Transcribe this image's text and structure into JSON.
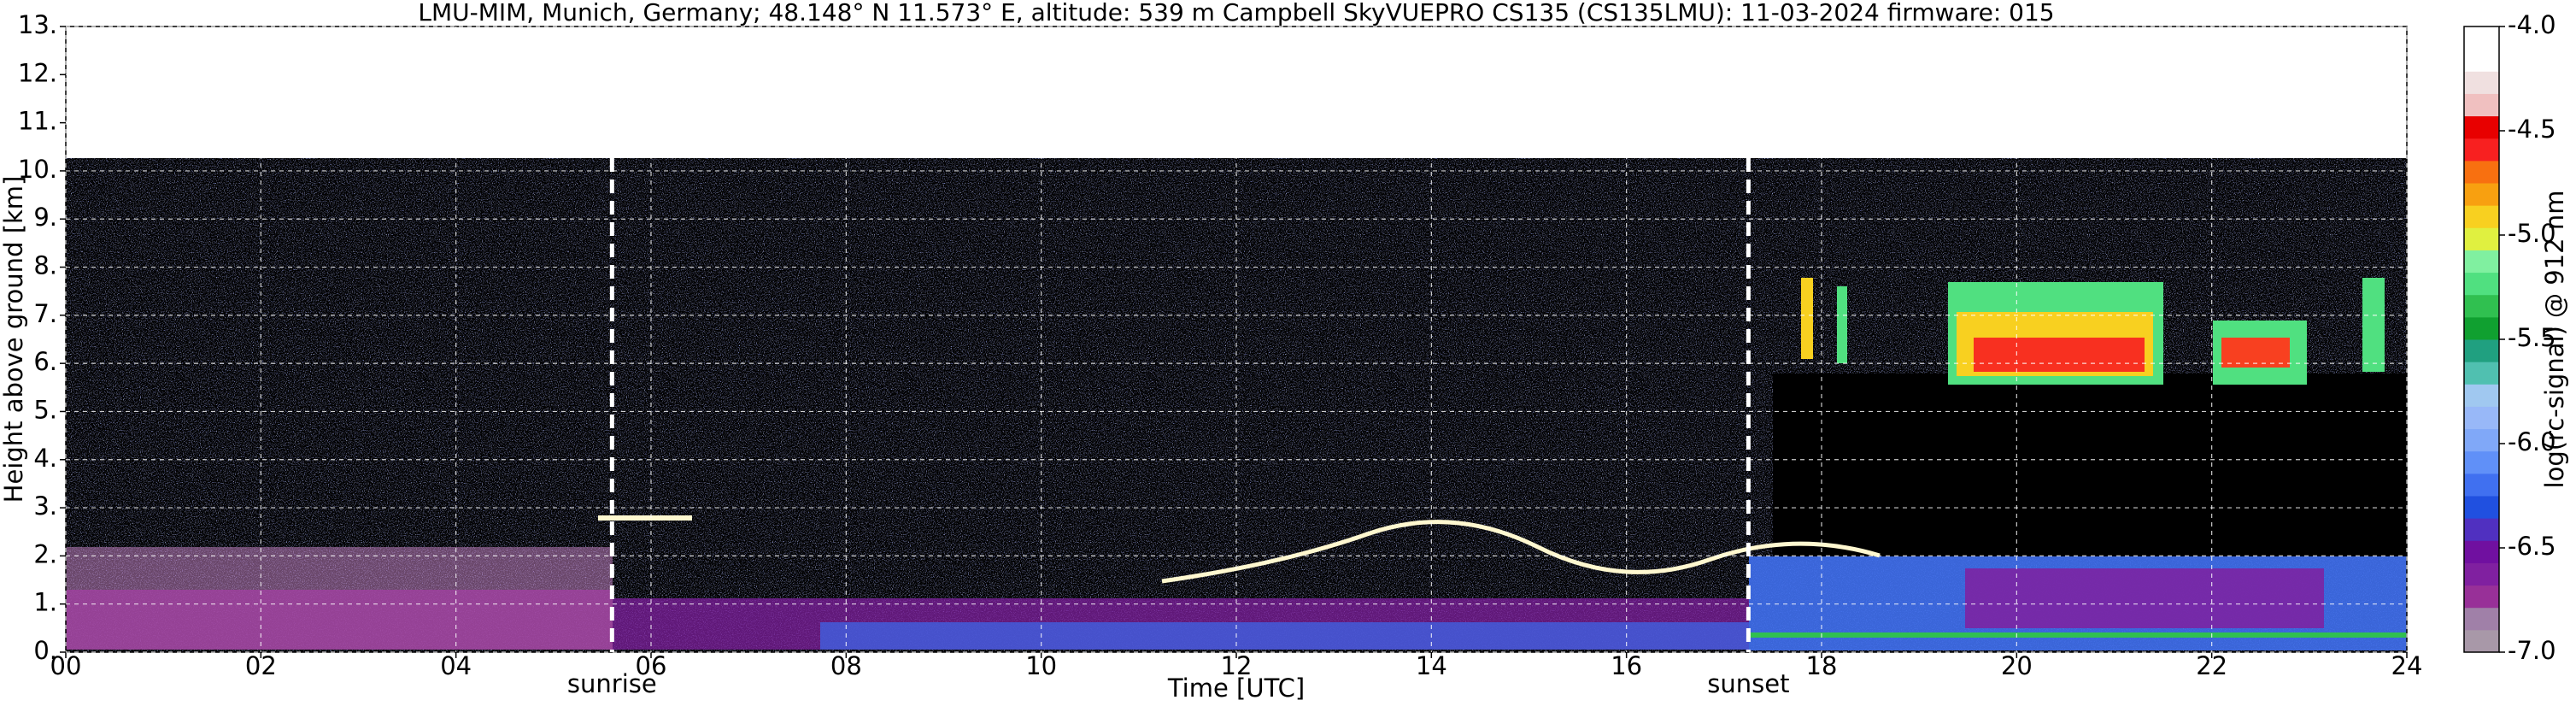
{
  "chart_data": {
    "type": "heatmap",
    "title": "LMU-MIM, Munich, Germany; 48.148° N 11.573° E, altitude: 539 m    Campbell SkyVUEPRO CS135 (CS135LMU): 11-03-2024    firmware: 015",
    "xlabel": "Time [UTC]",
    "ylabel": "Height above ground [km]",
    "xlim": [
      0,
      24
    ],
    "xticks": [
      {
        "value": 0,
        "label": "00"
      },
      {
        "value": 2,
        "label": "02"
      },
      {
        "value": 4,
        "label": "04"
      },
      {
        "value": 6,
        "label": "06"
      },
      {
        "value": 8,
        "label": "08"
      },
      10,
      12,
      14,
      16,
      18,
      20,
      22,
      24
    ],
    "ylim": [
      0,
      13
    ],
    "yticks": [
      {
        "value": 0,
        "label": "0."
      },
      {
        "value": 1,
        "label": "1."
      },
      {
        "value": 2,
        "label": "2."
      },
      {
        "value": 3,
        "label": "3."
      },
      {
        "value": 4,
        "label": "4."
      },
      {
        "value": 5,
        "label": "5."
      },
      {
        "value": 6,
        "label": "6."
      },
      {
        "value": 7,
        "label": "7."
      },
      {
        "value": 8,
        "label": "8."
      },
      {
        "value": 9,
        "label": "9."
      },
      {
        "value": 10,
        "label": "10."
      },
      {
        "value": 11,
        "label": "11."
      },
      {
        "value": 12,
        "label": "12."
      },
      {
        "value": 13,
        "label": "13."
      }
    ],
    "grid": true,
    "annotations": [
      {
        "text": "sunrise",
        "x": 5.6
      },
      {
        "text": "sunset",
        "x": 17.25
      }
    ],
    "colorbar": {
      "label": "log(rc-signal) @ 912 nm",
      "lim": [
        -7,
        -4
      ],
      "ticks": [
        {
          "value": -4,
          "label": "-4.0"
        },
        {
          "value": -4.5,
          "label": "-4.5"
        },
        {
          "value": -5,
          "label": "-5.0"
        },
        {
          "value": -5.5,
          "label": "-5.5"
        },
        {
          "value": -6,
          "label": "-6.0"
        },
        {
          "value": -6.5,
          "label": "-6.5"
        },
        {
          "value": -7,
          "label": "-7.0"
        }
      ],
      "colors": [
        "#a898a8",
        "#a080a8",
        "#983098",
        "#8020a0",
        "#7010a0",
        "#5030c0",
        "#2050e0",
        "#4070f0",
        "#6090f8",
        "#80a8f8",
        "#98b8f8",
        "#a0c8f0",
        "#50c0b0",
        "#20a080",
        "#10a030",
        "#30c050",
        "#50e080",
        "#80f0a0",
        "#e0f040",
        "#f8d020",
        "#f8a010",
        "#f87010",
        "#f82020",
        "#e80000",
        "#f0c0c0",
        "#f0e0e0",
        "#ffffff",
        "#ffffff"
      ]
    }
  }
}
